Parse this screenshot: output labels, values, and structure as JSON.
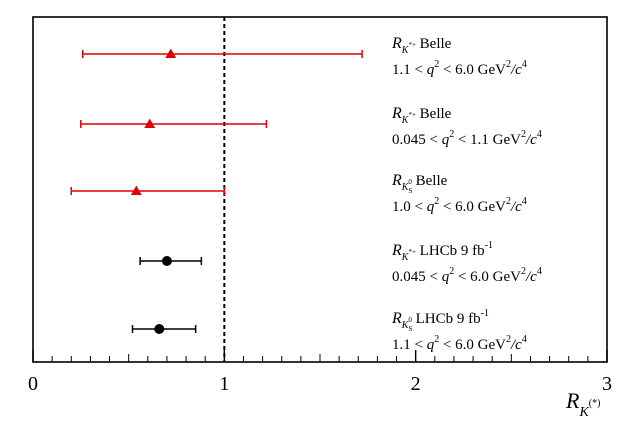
{
  "chart_data": {
    "type": "scatter",
    "xlabel": {
      "main": "R",
      "sub": "K",
      "subsup": "(*)"
    },
    "xlim": [
      0,
      3
    ],
    "xticks": [
      "0",
      "1",
      "2",
      "3"
    ],
    "reference_line": 1,
    "colors": {
      "belle": "#e00000",
      "lhcb": "#000000",
      "reference": "#000000"
    },
    "series": [
      {
        "marker": "triangle",
        "color": "#e00000",
        "value": 0.72,
        "err_low": 0.26,
        "err_high": 1.72,
        "label": {
          "main": "R",
          "sub": "K",
          "subsup": "*+",
          "tail": " Belle",
          "range_pre": "1.1 < ",
          "range_q": "q",
          "range_post": " < 6.0 GeV",
          "units_sup": "2",
          "units_c": "/c",
          "units_sup2": "4"
        }
      },
      {
        "marker": "triangle",
        "color": "#e00000",
        "value": 0.61,
        "err_low": 0.25,
        "err_high": 1.22,
        "label": {
          "main": "R",
          "sub": "K",
          "subsup": "*+",
          "tail": " Belle",
          "range_pre": "0.045 < ",
          "range_q": "q",
          "range_post": " < 1.1 GeV",
          "units_sup": "2",
          "units_c": "/c",
          "units_sup2": "4"
        }
      },
      {
        "marker": "triangle",
        "color": "#e00000",
        "value": 0.54,
        "err_low": 0.2,
        "err_high": 1.0,
        "label": {
          "main": "R",
          "sub": "K",
          "subsub": "S",
          "subsup": "0",
          "tail": " Belle",
          "range_pre": "1.0 < ",
          "range_q": "q",
          "range_post": " < 6.0 GeV",
          "units_sup": "2",
          "units_c": "/c",
          "units_sup2": "4"
        }
      },
      {
        "marker": "circle",
        "color": "#000000",
        "value": 0.7,
        "err_low": 0.56,
        "err_high": 0.88,
        "label": {
          "main": "R",
          "sub": "K",
          "subsup": "*+",
          "tail": " LHCb 9 fb",
          "tail_sup": "-1",
          "range_pre": "0.045 < ",
          "range_q": "q",
          "range_post": " < 6.0 GeV",
          "units_sup": "2",
          "units_c": "/c",
          "units_sup2": "4"
        }
      },
      {
        "marker": "circle",
        "color": "#000000",
        "value": 0.66,
        "err_low": 0.52,
        "err_high": 0.85,
        "label": {
          "main": "R",
          "sub": "K",
          "subsub": "S",
          "subsup": "0",
          "tail": " LHCb 9 fb",
          "tail_sup": "-1",
          "range_pre": "1.1 < ",
          "range_q": "q",
          "range_post": " < 6.0 GeV",
          "units_sup": "2",
          "units_c": "/c",
          "units_sup2": "4"
        }
      }
    ]
  }
}
